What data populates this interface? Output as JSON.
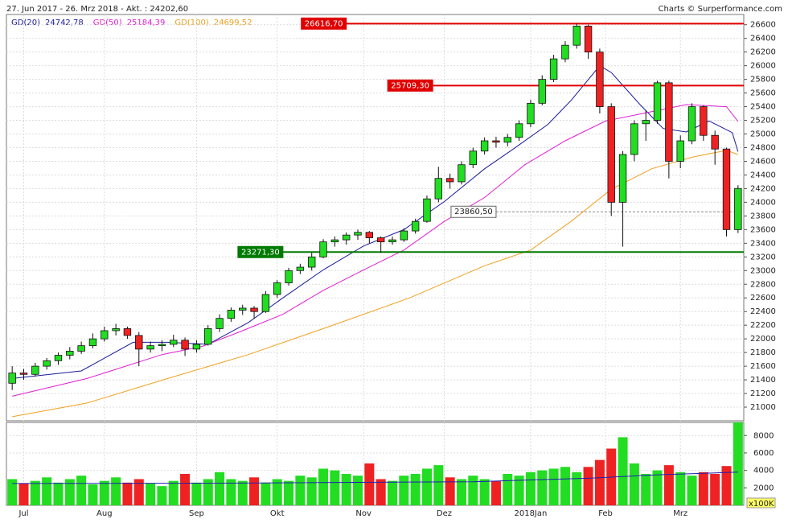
{
  "chart_data": {
    "type": "candlestick",
    "title": "27. Jun 2017 - 26. Mrz 2018 - Akt. : 24202,60",
    "credit": "Charts © Surperformance.com",
    "xlim": [
      -0.5,
      63.5
    ],
    "xticks": [
      {
        "value": 1,
        "label": "Jul"
      },
      {
        "value": 8,
        "label": "Aug"
      },
      {
        "value": 16,
        "label": "Sep"
      },
      {
        "value": 23,
        "label": "Okt"
      },
      {
        "value": 30.5,
        "label": "Nov"
      },
      {
        "value": 37.5,
        "label": "Dez"
      },
      {
        "value": 45,
        "label": "2018Jan"
      },
      {
        "value": 51.5,
        "label": "Feb"
      },
      {
        "value": 58,
        "label": "Mrz"
      }
    ],
    "ylim": [
      20800,
      26750
    ],
    "yticks": [
      21000,
      21200,
      21400,
      21600,
      21800,
      22000,
      22200,
      22400,
      22600,
      22800,
      23000,
      23200,
      23400,
      23600,
      23800,
      24000,
      24200,
      24400,
      24600,
      24800,
      25000,
      25200,
      25400,
      25600,
      25800,
      26000,
      26200,
      26400,
      26600
    ],
    "grid": true,
    "up_color": "#22dd22",
    "down_color": "#ee2222",
    "candles": [
      [
        21350,
        21600,
        21250,
        21500
      ],
      [
        21500,
        21560,
        21400,
        21480
      ],
      [
        21480,
        21650,
        21450,
        21600
      ],
      [
        21600,
        21720,
        21550,
        21680
      ],
      [
        21680,
        21800,
        21620,
        21760
      ],
      [
        21760,
        21880,
        21700,
        21820
      ],
      [
        21820,
        21960,
        21780,
        21900
      ],
      [
        21900,
        22080,
        21860,
        22000
      ],
      [
        22000,
        22180,
        21960,
        22120
      ],
      [
        22120,
        22220,
        22050,
        22150
      ],
      [
        22150,
        22180,
        22000,
        22050
      ],
      [
        22050,
        22100,
        21600,
        21850
      ],
      [
        21850,
        21960,
        21800,
        21900
      ],
      [
        21900,
        21980,
        21820,
        21920
      ],
      [
        21920,
        22060,
        21880,
        21980
      ],
      [
        21980,
        22020,
        21750,
        21850
      ],
      [
        21850,
        21980,
        21800,
        21920
      ],
      [
        21920,
        22200,
        21900,
        22150
      ],
      [
        22150,
        22360,
        22100,
        22300
      ],
      [
        22300,
        22460,
        22250,
        22420
      ],
      [
        22420,
        22500,
        22350,
        22450
      ],
      [
        22450,
        22480,
        22300,
        22400
      ],
      [
        22400,
        22700,
        22380,
        22650
      ],
      [
        22650,
        22860,
        22600,
        22820
      ],
      [
        22820,
        23040,
        22780,
        23000
      ],
      [
        23000,
        23100,
        22950,
        23050
      ],
      [
        23050,
        23260,
        23000,
        23200
      ],
      [
        23200,
        23460,
        23180,
        23420
      ],
      [
        23420,
        23500,
        23350,
        23450
      ],
      [
        23450,
        23560,
        23380,
        23520
      ],
      [
        23520,
        23600,
        23450,
        23560
      ],
      [
        23560,
        23580,
        23400,
        23480
      ],
      [
        23480,
        23500,
        23260,
        23420
      ],
      [
        23420,
        23500,
        23380,
        23450
      ],
      [
        23450,
        23620,
        23420,
        23580
      ],
      [
        23580,
        23760,
        23540,
        23720
      ],
      [
        23720,
        24100,
        23700,
        24050
      ],
      [
        24050,
        24520,
        24000,
        24350
      ],
      [
        24350,
        24420,
        24200,
        24300
      ],
      [
        24300,
        24600,
        24260,
        24550
      ],
      [
        24550,
        24800,
        24500,
        24750
      ],
      [
        24750,
        24950,
        24700,
        24900
      ],
      [
        24900,
        24960,
        24800,
        24880
      ],
      [
        24880,
        25000,
        24820,
        24950
      ],
      [
        24950,
        25200,
        24900,
        25150
      ],
      [
        25150,
        25500,
        25100,
        25450
      ],
      [
        25450,
        25860,
        25420,
        25800
      ],
      [
        25800,
        26160,
        25760,
        26100
      ],
      [
        26100,
        26360,
        26050,
        26300
      ],
      [
        26300,
        26616.7,
        26250,
        26580
      ],
      [
        26580,
        26600,
        26100,
        26200
      ],
      [
        26200,
        26250,
        25300,
        25400
      ],
      [
        25400,
        25450,
        23800,
        24000
      ],
      [
        24000,
        24750,
        23350,
        24700
      ],
      [
        24700,
        25200,
        24600,
        25150
      ],
      [
        25150,
        25350,
        24900,
        25200
      ],
      [
        25200,
        25780,
        25150,
        25750
      ],
      [
        25750,
        25780,
        24350,
        24600
      ],
      [
        24600,
        24980,
        24500,
        24900
      ],
      [
        24900,
        25450,
        24850,
        25400
      ],
      [
        25400,
        25420,
        24900,
        24980
      ],
      [
        24980,
        25050,
        24550,
        24780
      ],
      [
        24780,
        24800,
        23500,
        23600
      ],
      [
        23600,
        24250,
        23550,
        24202.6
      ]
    ],
    "moving_averages": [
      {
        "name": "GD(20)",
        "last_label": "24742,78",
        "color": "#1a1a9a",
        "x": [
          0,
          6,
          10.5,
          13.5,
          17,
          20.5,
          23.5,
          27,
          30.5,
          34,
          37.5,
          41,
          43.5,
          46.5,
          48.5,
          51,
          52,
          54.5,
          56.5,
          58.5,
          60.5,
          62.5,
          63
        ],
        "values": [
          21420,
          21530,
          21950,
          21950,
          21920,
          22240,
          22600,
          23010,
          23360,
          23600,
          24010,
          24490,
          24780,
          25140,
          25490,
          26000,
          25900,
          25430,
          25080,
          25030,
          25190,
          25020,
          24742.78
        ]
      },
      {
        "name": "GD(50)",
        "last_label": "25184,39",
        "color": "#e020d0",
        "x": [
          0,
          6.5,
          13,
          16.5,
          20,
          23.5,
          27,
          30.5,
          34,
          37.5,
          41,
          44.5,
          48,
          51.5,
          55,
          58.5,
          62,
          63
        ],
        "values": [
          21160,
          21420,
          21770,
          21890,
          22120,
          22360,
          22710,
          23010,
          23300,
          23720,
          24070,
          24550,
          24900,
          25190,
          25310,
          25430,
          25400,
          25184.39
        ]
      },
      {
        "name": "GD(100)",
        "last_label": "24699,52",
        "color": "#f0a020",
        "x": [
          0,
          6.5,
          13.5,
          20.5,
          27.5,
          34.5,
          41,
          45,
          48.5,
          52,
          55.5,
          59,
          62,
          63
        ],
        "values": [
          20860,
          21060,
          21420,
          21770,
          22180,
          22600,
          23070,
          23300,
          23720,
          24190,
          24490,
          24660,
          24760,
          24699.52
        ]
      }
    ],
    "levels": [
      {
        "value": 26616.7,
        "label": "26616,70",
        "color": "#e00000",
        "x0": 29
      },
      {
        "value": 25709.3,
        "label": "25709,30",
        "color": "#e00000",
        "x0": 36.5
      },
      {
        "value": 23271.3,
        "label": "23271,30",
        "color": "#007a00",
        "x0": 23.5
      },
      {
        "value": 23860.5,
        "label": "23860,50",
        "color": "#888888",
        "x0": 42,
        "dashed": true
      }
    ],
    "volume": {
      "unit_label": "x100K",
      "ylim": [
        0,
        9500
      ],
      "yticks": [
        2000,
        4000,
        6000,
        8000
      ],
      "values": [
        3000,
        2500,
        2800,
        3200,
        2600,
        3000,
        3400,
        2400,
        2800,
        3200,
        2600,
        3000,
        2500,
        2200,
        2800,
        3600,
        2600,
        3000,
        3800,
        3000,
        2800,
        3200,
        2600,
        3000,
        2800,
        3400,
        3200,
        4200,
        4000,
        3600,
        3400,
        4800,
        3000,
        2800,
        3400,
        3600,
        4200,
        4600,
        3200,
        3000,
        3400,
        3000,
        2800,
        3600,
        3400,
        3800,
        4000,
        4200,
        4400,
        3800,
        4400,
        5200,
        6500,
        7800,
        4800,
        3600,
        4000,
        4600,
        3800,
        3400,
        3800,
        3600,
        4500,
        9500
      ],
      "average": {
        "color": "#2020b0",
        "x": [
          0,
          20,
          40,
          50,
          56,
          63
        ],
        "values": [
          2500,
          2550,
          2700,
          3100,
          3500,
          3800
        ]
      }
    }
  }
}
